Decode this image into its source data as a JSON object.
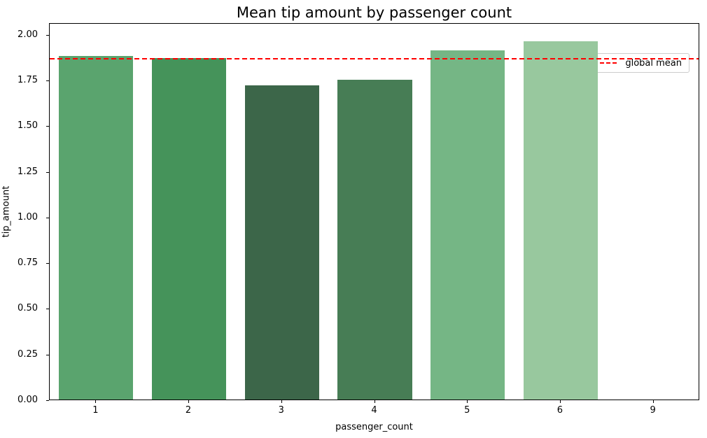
{
  "title": "Mean tip amount by passenger count",
  "axes": {
    "xlabel": "passenger_count",
    "ylabel": "tip_amount"
  },
  "legend": {
    "label": "global mean",
    "position": "upper right",
    "line_color": "#ff0000",
    "line_style": "dashed"
  },
  "chart_data": {
    "type": "bar",
    "title": "Mean tip amount by passenger count",
    "xlabel": "passenger_count",
    "ylabel": "tip_amount",
    "categories": [
      "1",
      "2",
      "3",
      "4",
      "5",
      "6",
      "9"
    ],
    "values": [
      1.88,
      1.87,
      1.72,
      1.75,
      1.91,
      1.96,
      0.0
    ],
    "bar_colors": [
      "#5aa46e",
      "#45935a",
      "#3c6649",
      "#477d55",
      "#75b685",
      "#98c89e",
      null
    ],
    "global_mean": 1.875,
    "global_mean_color": "#ff0000",
    "ylim": [
      0,
      2.065
    ],
    "yticks": [
      0.0,
      0.25,
      0.5,
      0.75,
      1.0,
      1.25,
      1.5,
      1.75,
      2.0
    ],
    "ytick_labels": [
      "0.00",
      "0.25",
      "0.50",
      "0.75",
      "1.00",
      "1.25",
      "1.50",
      "1.75",
      "2.00"
    ],
    "grid": false,
    "legend_entries": [
      {
        "label": "global mean",
        "marker": "dashed-line",
        "color": "#ff0000"
      }
    ],
    "bar_width_fraction": 0.8
  }
}
